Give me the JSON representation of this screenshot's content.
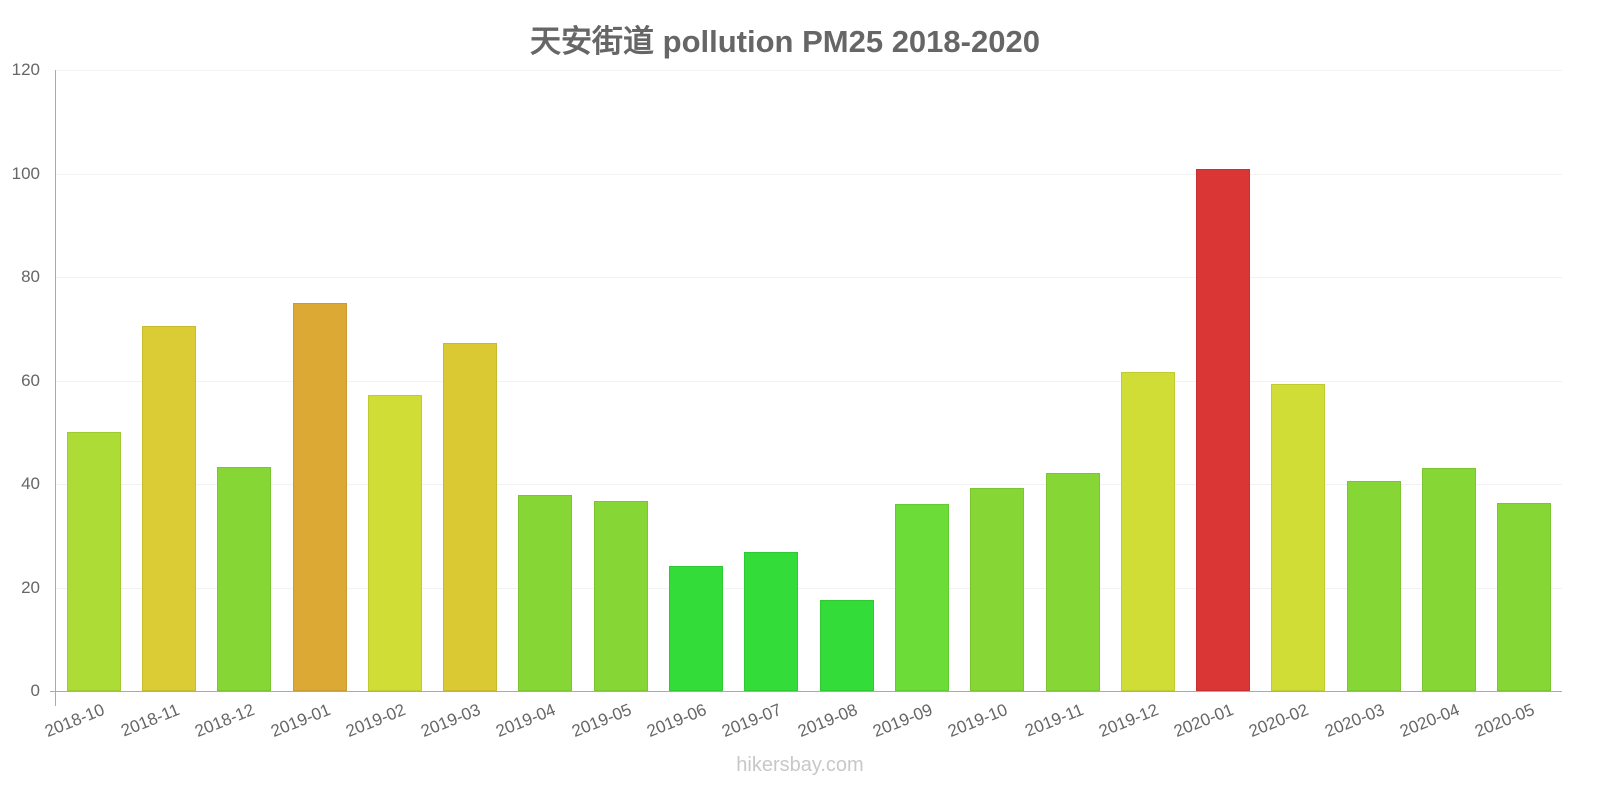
{
  "chart_data": {
    "type": "bar",
    "title": "天安街道 pollution PM25 2018-2020",
    "xlabel": "",
    "ylabel": "",
    "ylim": [
      0,
      120
    ],
    "yticks": [
      0,
      20,
      40,
      60,
      80,
      100,
      120
    ],
    "grid": true,
    "legend": null,
    "categories": [
      "2018-10",
      "2018-11",
      "2018-12",
      "2019-01",
      "2019-02",
      "2019-03",
      "2019-04",
      "2019-05",
      "2019-06",
      "2019-07",
      "2019-08",
      "2019-09",
      "2019-10",
      "2019-11",
      "2019-12",
      "2020-01",
      "2020-02",
      "2020-03",
      "2020-04",
      "2020-05"
    ],
    "values": [
      50.0,
      70.6,
      43.3,
      74.9,
      57.2,
      67.2,
      37.9,
      36.7,
      24.1,
      26.8,
      17.6,
      36.2,
      39.3,
      42.2,
      61.6,
      100.9,
      59.4,
      40.6,
      43.0,
      36.4
    ],
    "colors": [
      "#addc36",
      "#dbcb34",
      "#86d635",
      "#dca935",
      "#cfdd36",
      "#dbc934",
      "#86d635",
      "#86d635",
      "#33dc38",
      "#33dc38",
      "#33dc38",
      "#6bdc38",
      "#86d635",
      "#86d635",
      "#cfdd36",
      "#da3636",
      "#cfdd36",
      "#86d635",
      "#86d635",
      "#86d635"
    ]
  },
  "watermark": "hikersbay.com"
}
